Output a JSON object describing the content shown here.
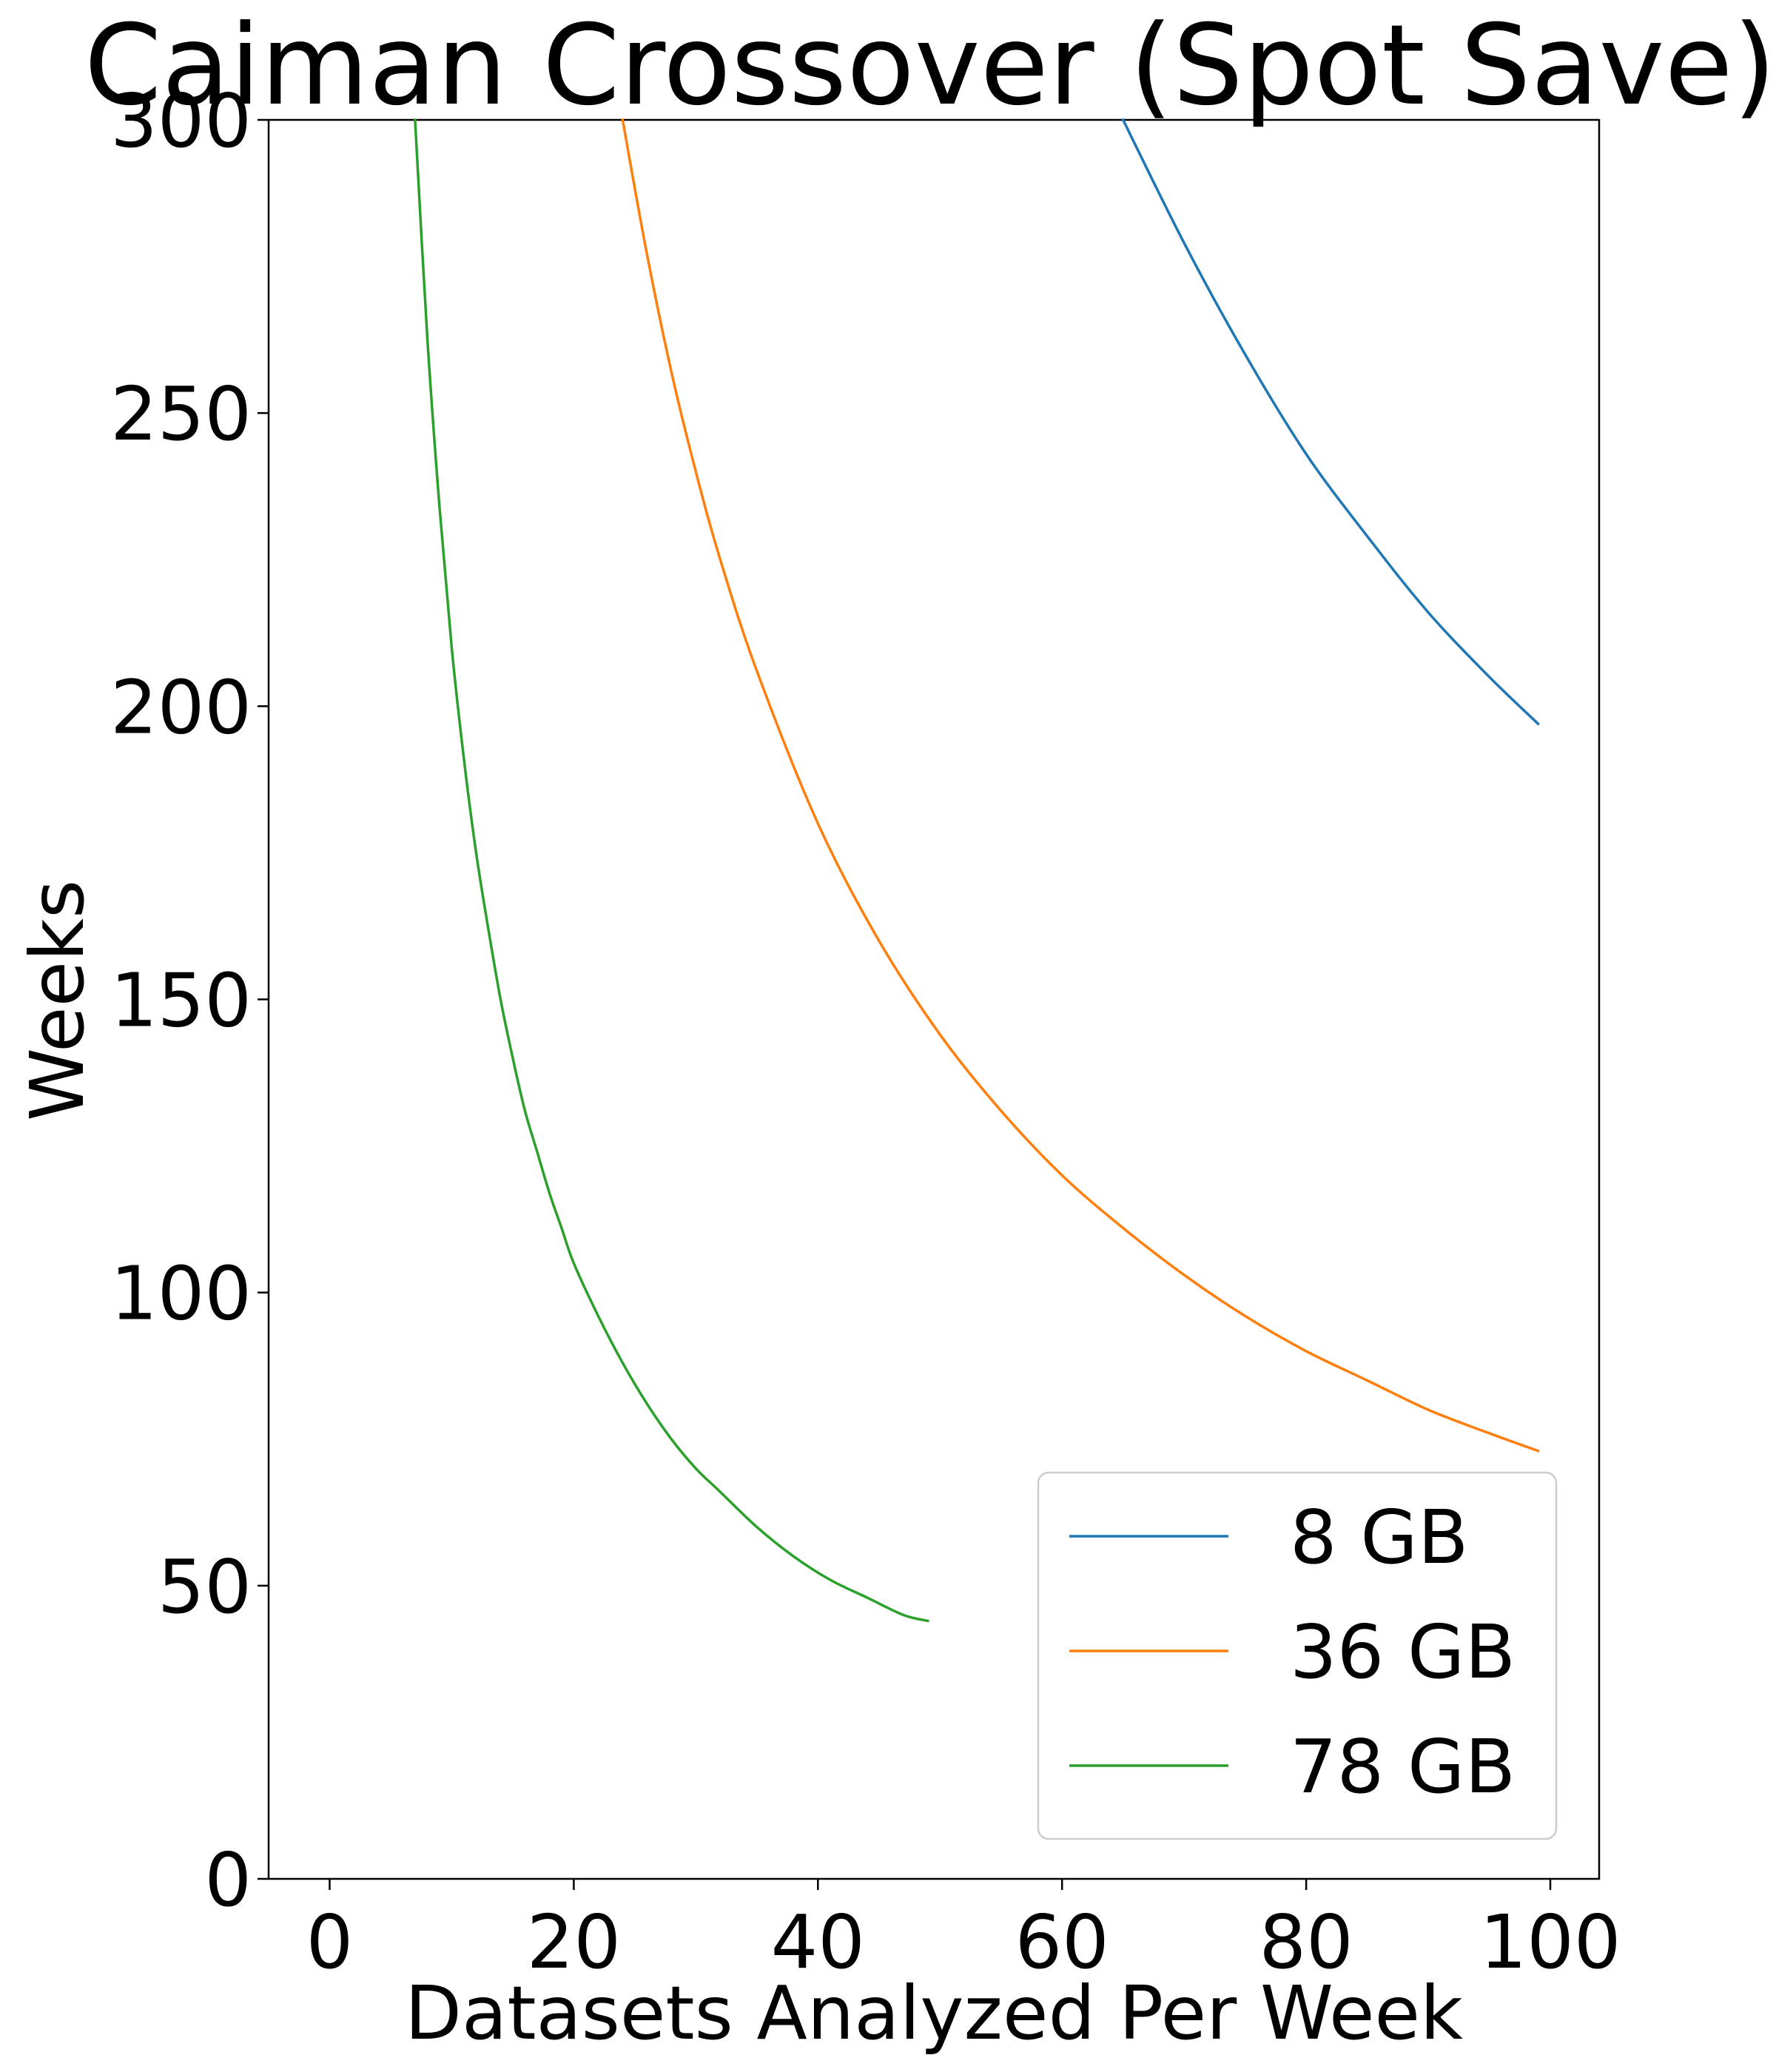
{
  "chart_data": {
    "type": "line",
    "title": "Caiman Crossover (Spot Save)",
    "xlabel": "Datasets Analyzed Per Week",
    "ylabel": "Weeks",
    "xlim": [
      -5,
      104
    ],
    "ylim": [
      0,
      300
    ],
    "xticks": [
      0,
      20,
      40,
      60,
      80,
      100
    ],
    "yticks": [
      0,
      50,
      100,
      150,
      200,
      250,
      300
    ],
    "grid": false,
    "legend_position": "lower-right",
    "series": [
      {
        "name": "8 GB",
        "color": "#1f77b4",
        "x": [
          65,
          70,
          75,
          80,
          85,
          90,
          95,
          99
        ],
        "y": [
          300,
          279,
          260,
          243,
          229,
          216,
          205,
          197
        ]
      },
      {
        "name": "36 GB",
        "color": "#ff7f0e",
        "x": [
          24,
          26,
          28,
          30,
          32,
          35,
          40,
          45,
          50,
          55,
          60,
          65,
          70,
          75,
          80,
          85,
          90,
          95,
          99
        ],
        "y": [
          300,
          277,
          257,
          240,
          225,
          206,
          180,
          160,
          144,
          131,
          120,
          111,
          103,
          96,
          90,
          85,
          80,
          76,
          73
        ]
      },
      {
        "name": "78 GB",
        "color": "#2ca02c",
        "x": [
          7,
          8,
          9,
          10,
          11,
          12,
          13,
          14,
          15,
          16,
          17,
          18,
          19,
          20,
          22,
          24,
          26,
          28,
          30,
          32,
          35,
          38,
          41,
          44,
          47,
          49
        ],
        "y": [
          300,
          263,
          234,
          210,
          191,
          175,
          162,
          150,
          140,
          131,
          124,
          117,
          111,
          105,
          96,
          88,
          81,
          75,
          70,
          66,
          60,
          55,
          51,
          48,
          45,
          44
        ]
      }
    ]
  }
}
